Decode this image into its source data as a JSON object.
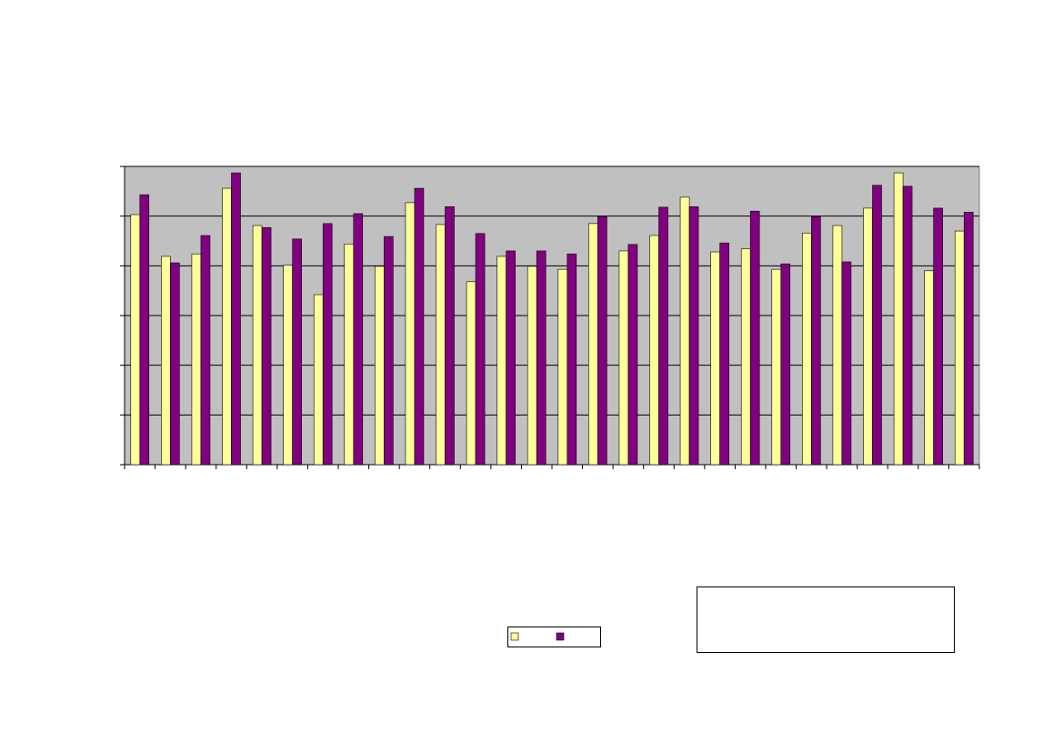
{
  "chart_data": {
    "type": "bar",
    "categories": [
      null,
      null,
      null,
      null,
      null,
      null,
      null,
      null,
      null,
      null,
      null,
      null,
      null,
      null,
      null,
      null,
      null,
      null,
      null,
      null,
      null,
      null,
      null,
      null,
      null,
      null,
      null,
      null
    ],
    "series": [
      {
        "color": "#ffff99",
        "values": [
          5.03,
          4.19,
          4.24,
          5.56,
          4.81,
          4.01,
          3.42,
          4.44,
          3.99,
          5.27,
          4.83,
          3.68,
          4.19,
          3.99,
          3.93,
          4.85,
          4.3,
          4.61,
          5.38,
          4.28,
          4.34,
          3.93,
          4.66,
          4.81,
          5.16,
          5.87,
          3.9,
          4.7
        ]
      },
      {
        "color": "#800080",
        "values": [
          5.43,
          4.06,
          4.61,
          5.87,
          4.77,
          4.54,
          4.85,
          5.05,
          4.59,
          5.56,
          5.19,
          4.65,
          4.3,
          4.3,
          4.24,
          4.99,
          4.43,
          5.18,
          5.19,
          4.46,
          5.1,
          4.04,
          4.99,
          4.08,
          5.62,
          5.6,
          5.16,
          5.08
        ]
      }
    ],
    "ylim": [
      0,
      6
    ],
    "yticks": [
      0,
      1,
      2,
      3,
      4,
      5,
      6
    ],
    "grid": true,
    "plot_background": "#c0c0c0"
  }
}
